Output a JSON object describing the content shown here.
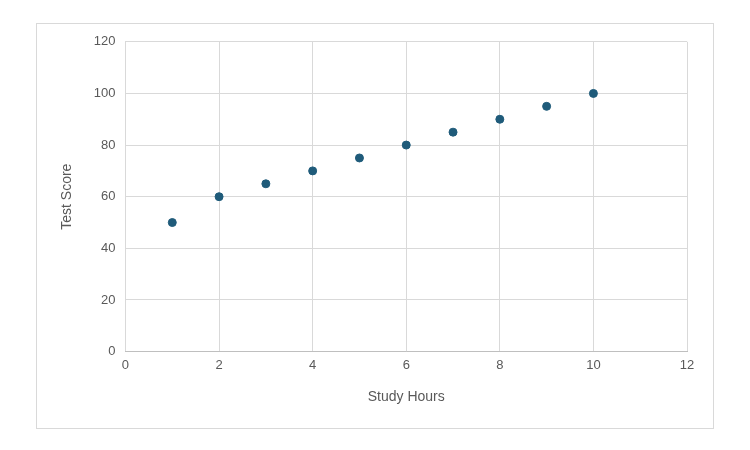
{
  "chart_data": {
    "type": "scatter",
    "x_label": "Study Hours",
    "y_label": "Test Score",
    "x": [
      1,
      2,
      3,
      4,
      5,
      6,
      7,
      8,
      9,
      10
    ],
    "values": [
      50,
      60,
      65,
      70,
      75,
      80,
      85,
      90,
      95,
      100
    ],
    "color": "#1f5b7a",
    "marker": "circle",
    "xlim": [
      0,
      12
    ],
    "xticks": [
      0,
      2,
      4,
      6,
      8,
      10,
      12
    ],
    "ylim": [
      0,
      120
    ],
    "yticks": [
      0,
      20,
      40,
      60,
      80,
      100,
      120
    ],
    "grid": true
  }
}
